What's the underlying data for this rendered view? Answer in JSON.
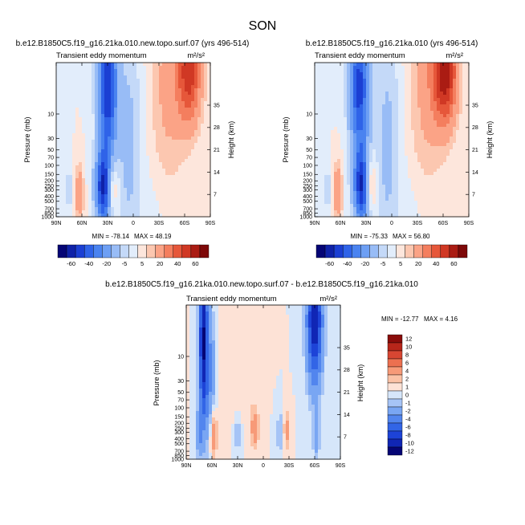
{
  "figure": {
    "season": "SON"
  },
  "chart_data": [
    {
      "type": "heatmap",
      "title": "b.e12.B1850C5.f19_g16.21ka.010.new.topo.surf.07 (yrs 496-514)",
      "subtitle": "Transient eddy momentum",
      "units": "m²/s²",
      "xlabel": "",
      "ylabel": "Pressure (mb)",
      "ylabel_right": "Height (km)",
      "x_ticks": [
        "90N",
        "60N",
        "30N",
        "0",
        "30S",
        "60S",
        "90S"
      ],
      "y_ticks": [
        "10",
        "30",
        "50",
        "70",
        "100",
        "150",
        "200",
        "250",
        "300",
        "400",
        "500",
        "700",
        "850",
        "1000"
      ],
      "y_ticks_right": [
        "35",
        "28",
        "21",
        "14",
        "7"
      ],
      "ylim": [
        1000,
        1
      ],
      "min_text": "MIN = -78.14",
      "max_text": "MAX =  48.19",
      "features": [
        {
          "lat": -65,
          "p": 1.5,
          "value": 45,
          "wx": 14,
          "wp": 1.0
        },
        {
          "lat": -40,
          "p": 3,
          "value": 12,
          "wx": 20,
          "wp": 2.2
        },
        {
          "lat": 27,
          "p": 260,
          "value": 45,
          "wx": 8,
          "wp": 0.6
        },
        {
          "lat": 63,
          "p": 350,
          "value": 18,
          "wx": 5,
          "wp": 0.55
        },
        {
          "lat": 30,
          "p": 3,
          "value": -60,
          "wx": 11,
          "wp": 1.3
        },
        {
          "lat": 5,
          "p": 40,
          "value": -12,
          "wx": 15,
          "wp": 2.5
        },
        {
          "lat": 33,
          "p": 270,
          "value": -78,
          "wx": 10,
          "wp": 0.7
        },
        {
          "lat": 75,
          "p": 300,
          "value": -8,
          "wx": 4,
          "wp": 0.6
        },
        {
          "lat": -30,
          "p": 600,
          "value": -3,
          "wx": 20,
          "wp": 1.0
        }
      ]
    },
    {
      "type": "heatmap",
      "title": "b.e12.B1850C5.f19_g16.21ka.010 (yrs 496-514)",
      "subtitle": "Transient eddy momentum",
      "units": "m²/s²",
      "xlabel": "",
      "ylabel": "Pressure (mb)",
      "ylabel_right": "Height (km)",
      "x_ticks": [
        "90N",
        "60N",
        "30N",
        "0",
        "30S",
        "60S",
        "90S"
      ],
      "y_ticks": [
        "10",
        "30",
        "50",
        "70",
        "100",
        "150",
        "200",
        "250",
        "300",
        "400",
        "500",
        "700",
        "850",
        "1000"
      ],
      "y_ticks_right": [
        "35",
        "28",
        "21",
        "14",
        "7"
      ],
      "ylim": [
        1000,
        1
      ],
      "min_text": "MIN = -75.33",
      "max_text": "MAX =  56.80",
      "features": [
        {
          "lat": -62,
          "p": 1.5,
          "value": 56,
          "wx": 14,
          "wp": 1.0
        },
        {
          "lat": -40,
          "p": 3,
          "value": 12,
          "wx": 20,
          "wp": 2.2
        },
        {
          "lat": 27,
          "p": 240,
          "value": 45,
          "wx": 8,
          "wp": 0.6
        },
        {
          "lat": 63,
          "p": 320,
          "value": 20,
          "wx": 5,
          "wp": 0.55
        },
        {
          "lat": 38,
          "p": 3,
          "value": -55,
          "wx": 11,
          "wp": 1.3
        },
        {
          "lat": 5,
          "p": 40,
          "value": -12,
          "wx": 15,
          "wp": 2.5
        },
        {
          "lat": 33,
          "p": 260,
          "value": -75,
          "wx": 10,
          "wp": 0.7
        },
        {
          "lat": 75,
          "p": 300,
          "value": -8,
          "wx": 4,
          "wp": 0.6
        },
        {
          "lat": -30,
          "p": 600,
          "value": -3,
          "wx": 20,
          "wp": 1.0
        }
      ]
    },
    {
      "type": "heatmap",
      "title": "b.e12.B1850C5.f19_g16.21ka.010.new.topo.surf.07 - b.e12.B1850C5.f19_g16.21ka.010",
      "subtitle": "Transient eddy momentum",
      "units": "m²/s²",
      "xlabel": "",
      "ylabel": "Pressure (mb)",
      "ylabel_right": "Height (km)",
      "x_ticks": [
        "90N",
        "60N",
        "30N",
        "0",
        "30S",
        "60S",
        "90S"
      ],
      "y_ticks": [
        "10",
        "30",
        "50",
        "70",
        "100",
        "150",
        "200",
        "250",
        "300",
        "400",
        "500",
        "700",
        "850",
        "1000"
      ],
      "y_ticks_right": [
        "35",
        "28",
        "21",
        "14",
        "7"
      ],
      "ylim": [
        1000,
        1
      ],
      "min_text": "MIN = -12.77",
      "max_text": "MAX =   4.16",
      "features": [
        {
          "lat": -60,
          "p": 2,
          "value": -12,
          "wx": 9,
          "wp": 1.2
        },
        {
          "lat": 70,
          "p": 5,
          "value": -12,
          "wx": 5,
          "wp": 1.6
        },
        {
          "lat": 62,
          "p": 20,
          "value": -4,
          "wx": 6,
          "wp": 1.2
        },
        {
          "lat": -62,
          "p": 350,
          "value": -3,
          "wx": 4,
          "wp": 0.45
        },
        {
          "lat": -20,
          "p": 300,
          "value": -2,
          "wx": 5,
          "wp": 0.45
        },
        {
          "lat": 30,
          "p": 300,
          "value": -2,
          "wx": 5,
          "wp": 0.45
        },
        {
          "lat": 75,
          "p": 300,
          "value": -4,
          "wx": 3,
          "wp": 0.45
        },
        {
          "lat": -27,
          "p": 270,
          "value": 3,
          "wx": 4,
          "wp": 0.4
        },
        {
          "lat": 10,
          "p": 250,
          "value": 3,
          "wx": 5,
          "wp": 0.4
        },
        {
          "lat": 58,
          "p": 330,
          "value": 4,
          "wx": 4,
          "wp": 0.45
        },
        {
          "lat": 30,
          "p": 30,
          "value": 1,
          "wx": 20,
          "wp": 1.0
        }
      ]
    }
  ],
  "colorbar_full": {
    "labels": [
      "-60",
      "-40",
      "-20",
      "-5",
      "5",
      "20",
      "40",
      "60"
    ],
    "levels": [
      -70,
      -60,
      -50,
      -40,
      -30,
      -20,
      -10,
      -5,
      0,
      5,
      10,
      20,
      30,
      40,
      50,
      60,
      70
    ],
    "colors": [
      "#050575",
      "#0f22a8",
      "#1b3fd3",
      "#2f63e8",
      "#4a83f0",
      "#6d9ff4",
      "#98bcf6",
      "#c4d9f8",
      "#e2edfb",
      "#fde6dc",
      "#fcc7b0",
      "#fba386",
      "#f47e5e",
      "#e6573a",
      "#d03824",
      "#aa1c13",
      "#7d0808"
    ]
  },
  "colorbar_diff": {
    "labels": [
      "12",
      "10",
      "8",
      "6",
      "4",
      "2",
      "1",
      "0",
      "-1",
      "-2",
      "-4",
      "-6",
      "-8",
      "-10",
      "-12"
    ],
    "levels": [
      -12,
      -10,
      -8,
      -6,
      -4,
      -2,
      -1,
      0,
      1,
      2,
      4,
      6,
      8,
      10,
      12
    ],
    "colors": [
      "#050575",
      "#1026b5",
      "#1d43d7",
      "#3265e6",
      "#5285ee",
      "#79a6f3",
      "#a6c4f6",
      "#d6e6fa",
      "#fde2d6",
      "#fbc2a6",
      "#f79a78",
      "#ec7050",
      "#d84632",
      "#b7261a",
      "#8a0c0a"
    ]
  }
}
